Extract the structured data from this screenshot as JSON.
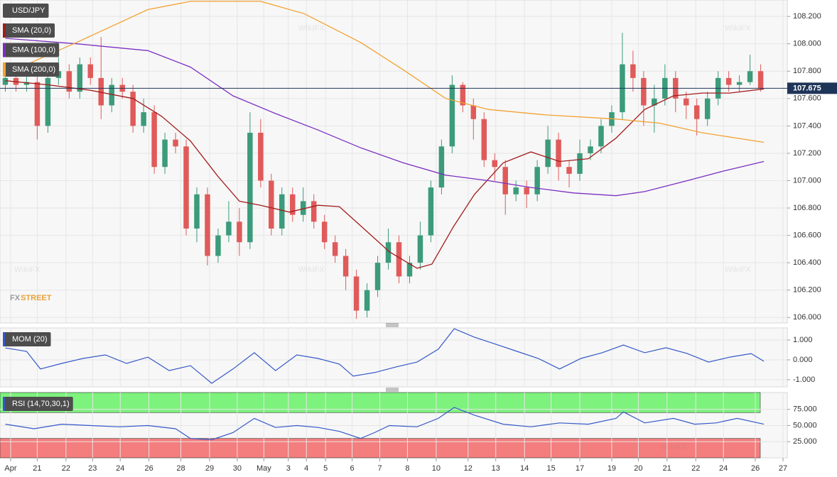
{
  "chart_data": [
    {
      "type": "candlestick",
      "title": "USD/JPY",
      "grid": true,
      "xlim": [
        -0.5,
        73.5
      ],
      "ylim": [
        105.96,
        108.32
      ],
      "yticks": [
        {
          "value": 106,
          "label": "106.000"
        },
        {
          "value": 106.2,
          "label": "106.200"
        },
        {
          "value": 106.4,
          "label": "106.400"
        },
        {
          "value": 106.6,
          "label": "106.600"
        },
        {
          "value": 106.8,
          "label": "106.800"
        },
        {
          "value": 107,
          "label": "107.000"
        },
        {
          "value": 107.2,
          "label": "107.200"
        },
        {
          "value": 107.4,
          "label": "107.400"
        },
        {
          "value": 107.6,
          "label": "107.600"
        },
        {
          "value": 107.8,
          "label": "107.800"
        },
        {
          "value": 108,
          "label": "108.000"
        },
        {
          "value": 108.2,
          "label": "108.200"
        }
      ],
      "up_color": "#3b9b7a",
      "down_color": "#e05a5a",
      "last_price_color": "#1f3558",
      "open": [
        107.7,
        107.75,
        107.7,
        107.72,
        107.4,
        107.75,
        107.8,
        107.65,
        107.85,
        107.75,
        107.55,
        107.7,
        107.65,
        107.4,
        107.5,
        107.1,
        107.3,
        107.25,
        106.65,
        106.9,
        106.45,
        106.6,
        106.7,
        106.55,
        107.35,
        107.0,
        106.65,
        106.9,
        106.75,
        106.85,
        106.7,
        106.55,
        106.45,
        106.3,
        106.05,
        106.2,
        106.4,
        106.55,
        106.3,
        106.4,
        106.6,
        106.95,
        107.25,
        107.7,
        107.55,
        107.45,
        107.15,
        107.1,
        106.9,
        106.95,
        106.9,
        107.1,
        107.3,
        107.1,
        107.05,
        107.2,
        107.25,
        107.4,
        107.5,
        107.85,
        107.75,
        107.55,
        107.6,
        107.75,
        107.6,
        107.55,
        107.45,
        107.6,
        107.75,
        107.7,
        107.72,
        107.8
      ],
      "high": [
        107.8,
        107.8,
        107.77,
        107.77,
        107.8,
        107.9,
        107.85,
        107.9,
        107.9,
        108.05,
        107.75,
        107.75,
        107.7,
        107.6,
        107.55,
        107.35,
        107.35,
        107.3,
        106.95,
        106.95,
        106.65,
        106.85,
        106.8,
        107.5,
        107.45,
        107.05,
        106.95,
        106.95,
        106.95,
        106.9,
        106.75,
        106.6,
        106.5,
        106.35,
        106.25,
        106.45,
        106.65,
        106.6,
        106.45,
        106.7,
        107.0,
        107.3,
        107.77,
        107.72,
        107.6,
        107.5,
        107.2,
        107.15,
        107.0,
        107.0,
        107.15,
        107.4,
        107.35,
        107.15,
        107.3,
        107.3,
        107.45,
        107.55,
        108.08,
        107.95,
        107.8,
        107.7,
        107.85,
        107.8,
        107.65,
        107.6,
        107.65,
        107.8,
        107.8,
        107.77,
        107.92,
        107.85
      ],
      "low": [
        107.65,
        107.65,
        107.65,
        107.3,
        107.35,
        107.7,
        107.6,
        107.6,
        107.7,
        107.45,
        107.5,
        107.6,
        107.35,
        107.35,
        107.05,
        107.05,
        107.2,
        106.6,
        106.55,
        106.38,
        106.4,
        106.55,
        106.45,
        106.5,
        106.95,
        106.6,
        106.6,
        106.7,
        106.7,
        106.65,
        106.5,
        106.4,
        106.2,
        105.99,
        106.0,
        106.15,
        106.35,
        106.25,
        106.25,
        106.35,
        106.55,
        106.9,
        107.2,
        107.5,
        107.3,
        107.1,
        107.0,
        106.75,
        106.85,
        106.8,
        106.85,
        107.05,
        107.0,
        106.95,
        107.0,
        107.15,
        107.2,
        107.35,
        107.45,
        107.65,
        107.4,
        107.35,
        107.55,
        107.5,
        107.45,
        107.33,
        107.4,
        107.55,
        107.65,
        107.65,
        107.7,
        107.65
      ],
      "close": [
        107.75,
        107.7,
        107.72,
        107.4,
        107.75,
        107.8,
        107.65,
        107.85,
        107.75,
        107.55,
        107.7,
        107.65,
        107.4,
        107.5,
        107.1,
        107.3,
        107.25,
        106.65,
        106.9,
        106.45,
        106.6,
        106.7,
        106.55,
        107.35,
        107.0,
        106.65,
        106.9,
        106.75,
        106.85,
        106.7,
        106.55,
        106.45,
        106.3,
        106.05,
        106.2,
        106.4,
        106.55,
        106.3,
        106.4,
        106.6,
        106.95,
        107.25,
        107.7,
        107.55,
        107.45,
        107.15,
        107.1,
        106.9,
        106.95,
        106.9,
        107.1,
        107.3,
        107.1,
        107.05,
        107.2,
        107.25,
        107.4,
        107.5,
        107.85,
        107.75,
        107.55,
        107.6,
        107.75,
        107.6,
        107.55,
        107.45,
        107.6,
        107.75,
        107.7,
        107.72,
        107.8,
        107.675
      ],
      "series": [
        {
          "name": "SMA (20,0)",
          "color": "#a31c1c",
          "x": [
            0,
            4.0,
            8.0,
            12.0,
            14.7,
            17.4,
            20.0,
            22.0,
            24.0,
            26.7,
            29.4,
            31.4,
            33.4,
            36.1,
            38.7,
            40.1,
            42.1,
            44.1,
            46.8,
            49.4,
            52.1,
            54.8,
            57.4,
            60.1,
            62.8,
            65.5,
            68.1,
            71.3
          ],
          "values": [
            107.73,
            107.7,
            107.66,
            107.6,
            107.47,
            107.29,
            107.03,
            106.85,
            106.82,
            106.77,
            106.82,
            106.81,
            106.67,
            106.48,
            106.36,
            106.39,
            106.66,
            106.9,
            107.13,
            107.21,
            107.14,
            107.16,
            107.31,
            107.52,
            107.62,
            107.64,
            107.64,
            107.67
          ]
        },
        {
          "name": "SMA (100,0)",
          "color": "#7b30c0",
          "x": [
            0,
            6.7,
            13.4,
            17.4,
            21.4,
            25.4,
            29.4,
            33.4,
            37.4,
            41.4,
            45.4,
            49.4,
            53.4,
            57.4,
            60.1,
            64.1,
            67.5,
            71.3
          ],
          "values": [
            108.04,
            108.0,
            107.95,
            107.83,
            107.62,
            107.49,
            107.37,
            107.24,
            107.13,
            107.04,
            107.0,
            106.95,
            106.91,
            106.89,
            106.92,
            107.0,
            107.07,
            107.14
          ]
        },
        {
          "name": "SMA (200,0)",
          "color": "#f2a232",
          "x": [
            0,
            6.7,
            13.4,
            17.4,
            24.0,
            28.1,
            33.4,
            37.4,
            41.4,
            45.4,
            50.8,
            57.4,
            61.5,
            65.5,
            71.3
          ],
          "values": [
            107.78,
            108.01,
            108.25,
            108.31,
            108.31,
            108.22,
            108.01,
            107.81,
            107.6,
            107.52,
            107.48,
            107.45,
            107.42,
            107.35,
            107.28
          ]
        }
      ],
      "watermark": "WikiFX",
      "logo": [
        "FX",
        "STREET"
      ]
    },
    {
      "type": "line",
      "title": "MOM (20)",
      "grid": true,
      "xlim": [
        -0.5,
        73.5
      ],
      "ylim": [
        -1.36,
        1.61
      ],
      "yticks": [
        {
          "value": -1,
          "label": "-1.000"
        },
        {
          "value": 0,
          "label": "0.000"
        },
        {
          "value": 1,
          "label": "1.000"
        }
      ],
      "series": [
        {
          "color": "#3558c8",
          "x": [
            0,
            2.0,
            3.3,
            5.3,
            7.3,
            9.4,
            11.4,
            13.4,
            15.4,
            17.4,
            19.4,
            21.4,
            23.4,
            25.4,
            27.4,
            29.4,
            31.4,
            32.7,
            34.7,
            36.7,
            38.7,
            40.7,
            42.2,
            44.1,
            46.1,
            48.1,
            50.1,
            52.1,
            54.1,
            56.1,
            58.1,
            60.1,
            62.1,
            64.1,
            66.1,
            68.1,
            70.1,
            71.3
          ],
          "values": [
            0.6,
            0.43,
            -0.46,
            -0.18,
            0.07,
            0.25,
            -0.18,
            0.14,
            -0.54,
            -0.29,
            -1.18,
            -0.46,
            0.36,
            -0.54,
            0.25,
            0.07,
            -0.21,
            -0.82,
            -0.64,
            -0.36,
            -0.11,
            0.54,
            1.57,
            1.14,
            0.79,
            0.43,
            0.07,
            -0.46,
            0.07,
            0.36,
            0.75,
            0.36,
            0.61,
            0.32,
            -0.11,
            0.14,
            0.32,
            -0.07
          ]
        }
      ]
    },
    {
      "type": "line",
      "title": "RSI (14,70,30,1)",
      "grid": true,
      "xlim": [
        -0.5,
        73.5
      ],
      "ylim": [
        0,
        101
      ],
      "yticks": [
        {
          "value": 25,
          "label": "25.000"
        },
        {
          "value": 50,
          "label": "50.000"
        },
        {
          "value": 75,
          "label": "75.000"
        }
      ],
      "zones": [
        {
          "from": 70,
          "to": 101,
          "color": "#7df27d"
        },
        {
          "from": 0,
          "to": 30,
          "color": "#f47d7d"
        }
      ],
      "xticks": [
        {
          "value": 0.5,
          "label": "Apr"
        },
        {
          "value": 3.0,
          "label": "21"
        },
        {
          "value": 5.7,
          "label": "22"
        },
        {
          "value": 8.2,
          "label": "23"
        },
        {
          "value": 10.8,
          "label": "24"
        },
        {
          "value": 13.5,
          "label": "26"
        },
        {
          "value": 16.5,
          "label": "28"
        },
        {
          "value": 19.2,
          "label": "29"
        },
        {
          "value": 21.8,
          "label": "30"
        },
        {
          "value": 24.3,
          "label": "May"
        },
        {
          "value": 26.6,
          "label": "3"
        },
        {
          "value": 28.3,
          "label": "4"
        },
        {
          "value": 30.1,
          "label": "5"
        },
        {
          "value": 32.6,
          "label": "6"
        },
        {
          "value": 35.2,
          "label": "7"
        },
        {
          "value": 37.8,
          "label": "8"
        },
        {
          "value": 40.5,
          "label": "10"
        },
        {
          "value": 43.5,
          "label": "12"
        },
        {
          "value": 46.1,
          "label": "13"
        },
        {
          "value": 48.8,
          "label": "14"
        },
        {
          "value": 51.3,
          "label": "15"
        },
        {
          "value": 54.0,
          "label": "17"
        },
        {
          "value": 57.0,
          "label": "19"
        },
        {
          "value": 59.5,
          "label": "20"
        },
        {
          "value": 62.2,
          "label": "21"
        },
        {
          "value": 64.9,
          "label": "22"
        },
        {
          "value": 67.5,
          "label": "24"
        },
        {
          "value": 70.5,
          "label": "26"
        },
        {
          "value": 73.1,
          "label": "27"
        }
      ],
      "series": [
        {
          "color": "#3558c8",
          "x": [
            0,
            2.7,
            5.3,
            8.0,
            10.7,
            13.4,
            16.0,
            17.4,
            19.4,
            21.4,
            23.4,
            25.4,
            27.4,
            29.4,
            31.4,
            33.4,
            34.7,
            36.1,
            38.7,
            40.7,
            42.2,
            44.1,
            46.8,
            49.4,
            52.1,
            54.8,
            57.4,
            58.1,
            60.1,
            62.8,
            64.8,
            66.8,
            68.8,
            71.3
          ],
          "values": [
            52,
            45,
            52,
            50,
            48,
            50,
            45,
            30,
            28,
            39,
            61,
            47,
            50,
            47,
            41,
            30,
            39,
            50,
            48,
            61,
            78,
            66,
            52,
            48,
            54,
            52,
            61,
            71,
            54,
            61,
            52,
            54,
            61,
            52
          ]
        }
      ]
    }
  ]
}
